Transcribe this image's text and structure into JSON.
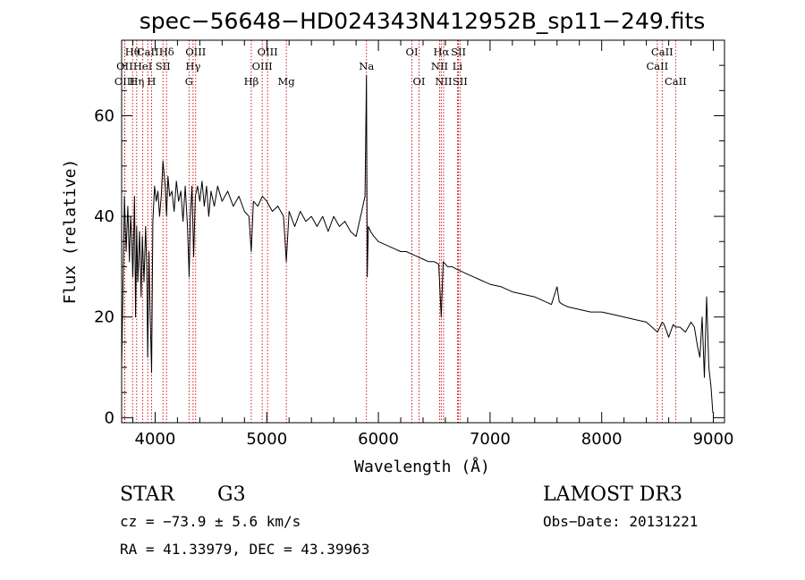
{
  "chart_data": {
    "type": "line",
    "title": "spec−56648−HD024343N412952B_sp11−249.fits",
    "xlabel": "Wavelength (Å)",
    "ylabel": "Flux (relative)",
    "xlim": [
      3700,
      9100
    ],
    "ylim": [
      -1,
      75
    ],
    "x_ticks": [
      4000,
      5000,
      6000,
      7000,
      8000,
      9000
    ],
    "x_tick_labels": [
      "4000",
      "5000",
      "6000",
      "7000",
      "8000",
      "9000"
    ],
    "y_ticks": [
      0,
      20,
      40,
      60
    ],
    "y_tick_labels": [
      "0",
      "20",
      "40",
      "60"
    ],
    "series": [
      {
        "name": "flux",
        "x": [
          3700,
          3715,
          3725,
          3740,
          3755,
          3770,
          3780,
          3790,
          3800,
          3815,
          3825,
          3835,
          3845,
          3860,
          3875,
          3885,
          3900,
          3915,
          3925,
          3933,
          3945,
          3955,
          3968,
          3980,
          3995,
          4010,
          4025,
          4040,
          4055,
          4070,
          4090,
          4102,
          4115,
          4130,
          4150,
          4170,
          4190,
          4210,
          4230,
          4250,
          4270,
          4290,
          4305,
          4315,
          4330,
          4345,
          4360,
          4380,
          4400,
          4420,
          4440,
          4460,
          4480,
          4500,
          4530,
          4560,
          4600,
          4650,
          4700,
          4750,
          4800,
          4840,
          4861,
          4880,
          4920,
          4960,
          5000,
          5050,
          5100,
          5150,
          5175,
          5200,
          5250,
          5300,
          5350,
          5400,
          5450,
          5500,
          5550,
          5600,
          5650,
          5700,
          5750,
          5800,
          5850,
          5880,
          5893,
          5900,
          5910,
          5930,
          5960,
          6000,
          6050,
          6100,
          6150,
          6200,
          6250,
          6300,
          6350,
          6400,
          6450,
          6500,
          6540,
          6563,
          6580,
          6620,
          6660,
          6700,
          6750,
          6800,
          6850,
          6900,
          6950,
          7000,
          7100,
          7200,
          7300,
          7400,
          7500,
          7550,
          7600,
          7620,
          7650,
          7700,
          7800,
          7900,
          8000,
          8100,
          8200,
          8300,
          8400,
          8500,
          8542,
          8560,
          8600,
          8640,
          8662,
          8700,
          8750,
          8800,
          8830,
          8860,
          8880,
          8900,
          8920,
          8940,
          8960,
          8980,
          8995
        ],
        "y": [
          10,
          30,
          44,
          33,
          42,
          31,
          40,
          36,
          28,
          44,
          20,
          38,
          27,
          37,
          24,
          36,
          27,
          38,
          30,
          12,
          33,
          21,
          9,
          39,
          46,
          43,
          45,
          40,
          44,
          51,
          46,
          40,
          48,
          44,
          45,
          41,
          47,
          43,
          45,
          39,
          46,
          38,
          28,
          40,
          46,
          32,
          44,
          46,
          43,
          47,
          42,
          46,
          40,
          45,
          42,
          46,
          43,
          45,
          42,
          44,
          41,
          40,
          33,
          43,
          42,
          44,
          43,
          41,
          42,
          40,
          31,
          41,
          38,
          41,
          39,
          40,
          38,
          40,
          37,
          40,
          38,
          39,
          37,
          36,
          41,
          44,
          68,
          28,
          38,
          37,
          36,
          35,
          34.5,
          34,
          33.5,
          33,
          33,
          32.5,
          32,
          31.5,
          31,
          31,
          30.5,
          20,
          31,
          30,
          30,
          29.5,
          29,
          28.5,
          28,
          27.5,
          27,
          26.5,
          26,
          25,
          24.5,
          24,
          23,
          22.5,
          26,
          23,
          22.5,
          22,
          21.5,
          21,
          21,
          20.5,
          20,
          19.5,
          19,
          17,
          19,
          18.5,
          16,
          18.5,
          18,
          18,
          17,
          19,
          18,
          14,
          12,
          20,
          8,
          24,
          10,
          6,
          1
        ],
        "color": "#000000"
      }
    ],
    "line_color": "#cc0000",
    "lines": [
      {
        "label": "Hθ",
        "x": 3798,
        "row": 0
      },
      {
        "label": "CaII",
        "x": 3934,
        "row": 0
      },
      {
        "label": "Hδ",
        "x": 4102,
        "row": 0
      },
      {
        "label": "OIII",
        "x": 4363,
        "row": 0
      },
      {
        "label": "OIII",
        "x": 5007,
        "row": 0
      },
      {
        "label": "OI",
        "x": 6300,
        "row": 0
      },
      {
        "label": "Hα",
        "x": 6563,
        "row": 0
      },
      {
        "label": "SII",
        "x": 6717,
        "row": 0
      },
      {
        "label": "CaII",
        "x": 8542,
        "row": 0
      },
      {
        "label": "OII",
        "x": 3727,
        "row": 1
      },
      {
        "label": "HeI",
        "x": 3889,
        "row": 1
      },
      {
        "label": "SII",
        "x": 4070,
        "row": 1
      },
      {
        "label": "Hγ",
        "x": 4340,
        "row": 1
      },
      {
        "label": "OIII",
        "x": 4959,
        "row": 1
      },
      {
        "label": "Na",
        "x": 5893,
        "row": 1
      },
      {
        "label": "NII",
        "x": 6548,
        "row": 1
      },
      {
        "label": "Li",
        "x": 6708,
        "row": 1
      },
      {
        "label": "CaII",
        "x": 8498,
        "row": 1
      },
      {
        "label": "OIII",
        "x": 3727,
        "row": 2
      },
      {
        "label": "Hη",
        "x": 3835,
        "row": 2
      },
      {
        "label": "H",
        "x": 3968,
        "row": 2
      },
      {
        "label": "G",
        "x": 4304,
        "row": 2
      },
      {
        "label": "Hβ",
        "x": 4861,
        "row": 2
      },
      {
        "label": "Mg",
        "x": 5175,
        "row": 2
      },
      {
        "label": "OI",
        "x": 6364,
        "row": 2
      },
      {
        "label": "NII",
        "x": 6584,
        "row": 2
      },
      {
        "label": "SII",
        "x": 6731,
        "row": 2
      },
      {
        "label": "CaII",
        "x": 8662,
        "row": 2
      }
    ]
  },
  "info": {
    "class": "STAR",
    "subclass": "G3",
    "survey": "LAMOST DR3",
    "cz": "cz = −73.9 ± 5.6 km/s",
    "obs_date": "Obs−Date: 20131221",
    "coords": "RA =  41.33979, DEC =  43.39963"
  }
}
